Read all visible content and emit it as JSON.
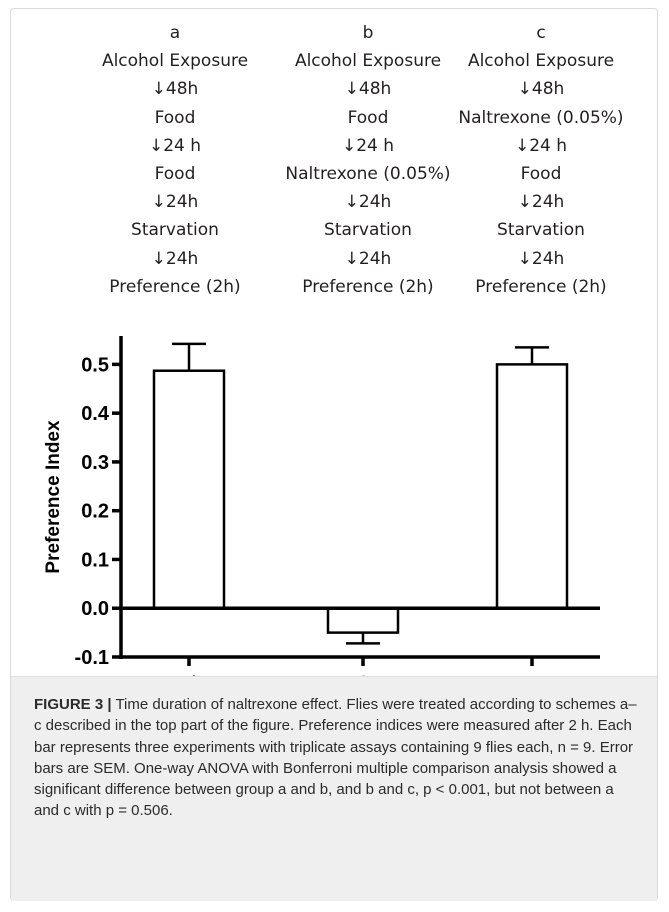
{
  "schemes": [
    {
      "id": "a",
      "steps": [
        "a",
        "Alcohol Exposure",
        "↓48h",
        "Food",
        "↓24 h",
        "Food",
        "↓24h",
        "Starvation",
        "↓24h",
        "Preference  (2h)"
      ]
    },
    {
      "id": "b",
      "steps": [
        "b",
        "Alcohol Exposure",
        "↓48h",
        "Food",
        "↓24 h",
        "Naltrexone (0.05%)",
        "↓24h",
        "Starvation",
        "↓24h",
        "Preference  (2h)"
      ]
    },
    {
      "id": "c",
      "steps": [
        "c",
        "Alcohol Exposure",
        "↓48h",
        "Naltrexone (0.05%)",
        "↓24 h",
        "Food",
        "↓24h",
        "Starvation",
        "↓24h",
        "Preference  (2h)"
      ]
    }
  ],
  "chart_data": {
    "type": "bar",
    "categories": [
      "a",
      "b",
      "c"
    ],
    "values": [
      0.487,
      -0.05,
      0.5
    ],
    "errors": [
      0.055,
      0.022,
      0.035
    ],
    "ylabel": "Preference Index",
    "xlabel": "",
    "ylim": [
      -0.1,
      0.55
    ],
    "yticks": [
      -0.1,
      0.0,
      0.1,
      0.2,
      0.3,
      0.4,
      0.5
    ],
    "ytick_labels": [
      "-0.1",
      "0.0",
      "0.1",
      "0.2",
      "0.3",
      "0.4",
      "0.5"
    ],
    "bar_fill": "#ffffff",
    "bar_stroke": "#000000",
    "grid": false,
    "legend": "none"
  },
  "caption": {
    "label": "FIGURE 3 |",
    "text": " Time duration of naltrexone effect. Flies were treated according to schemes a–c described in the top part of the figure. Preference indices were measured after 2 h. Each bar represents three experiments with triplicate assays containing 9 flies each, n = 9. Error bars are SEM. One-way ANOVA with Bonferroni multiple comparison analysis showed a significant difference between group a and b, and b and c, p < 0.001, but not between a and c with p = 0.506."
  }
}
